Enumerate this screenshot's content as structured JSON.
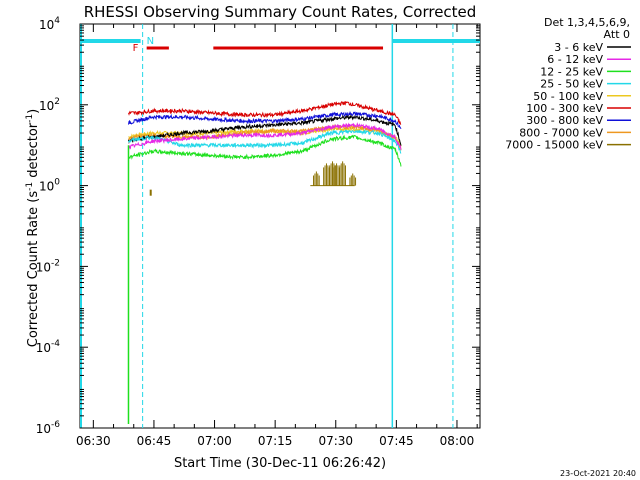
{
  "footer": {
    "date": "23-Oct-2021 20:40"
  },
  "chart_data": {
    "type": "line",
    "title": "RHESSI Observing Summary Count Rates, Corrected",
    "xlabel": "Start Time (30-Dec-11 06:26:42)",
    "ylabel_main": "Corrected Count Rate (s",
    "ylabel_unit": " detector",
    "ylabel_exp": "-1",
    "ylabel_close": ")",
    "x_range_minutes": [
      0,
      99
    ],
    "x_ticks": [
      {
        "m": 3.3,
        "label": "06:30"
      },
      {
        "m": 18.3,
        "label": "06:45"
      },
      {
        "m": 33.3,
        "label": "07:00"
      },
      {
        "m": 48.3,
        "label": "07:15"
      },
      {
        "m": 63.3,
        "label": "07:30"
      },
      {
        "m": 78.3,
        "label": "07:45"
      },
      {
        "m": 93.3,
        "label": "08:00"
      }
    ],
    "y_scale": "log",
    "y_range": [
      1e-06,
      10000.0
    ],
    "y_ticks": [
      {
        "base": "10",
        "exp": "4",
        "v": 4
      },
      {
        "base": "10",
        "exp": "2",
        "v": 2
      },
      {
        "base": "10",
        "exp": "0",
        "v": 0
      },
      {
        "base": "10",
        "exp": "-2",
        "v": -2
      },
      {
        "base": "10",
        "exp": "-4",
        "v": -4
      },
      {
        "base": "10",
        "exp": "-6",
        "v": -6
      }
    ],
    "legend": {
      "position": "right",
      "header1": "Det 1,3,4,5,6,9,",
      "header2": "Att 0",
      "entries": [
        {
          "label": "3 - 6 keV",
          "color": "#000000"
        },
        {
          "label": "6 - 12 keV",
          "color": "#e628e6"
        },
        {
          "label": "12 - 25 keV",
          "color": "#1ee01e"
        },
        {
          "label": "25 - 50 keV",
          "color": "#22d8e8"
        },
        {
          "label": "50 - 100 keV",
          "color": "#ecc820"
        },
        {
          "label": "100 - 300 keV",
          "color": "#d80000"
        },
        {
          "label": "300 - 800 keV",
          "color": "#1010d8"
        },
        {
          "label": "800 - 7000 keV",
          "color": "#ee9820"
        },
        {
          "label": "7000 - 15000 keV",
          "color": "#8a7000"
        }
      ]
    },
    "flags": {
      "F_label": "F",
      "N_label": "N",
      "night_color": "#22d8e8",
      "flare_color": "#d80000",
      "night_bars": [
        [
          0,
          15
        ],
        [
          77.3,
          99
        ]
      ],
      "flare_bars": [
        [
          16.5,
          22
        ],
        [
          33,
          75
        ]
      ],
      "saa_lines": [
        15.5,
        92.3
      ],
      "data_edges": [
        [
          0,
          77.3
        ]
      ]
    },
    "series": [
      {
        "color": "#ecc820",
        "points": [
          [
            12,
            1.2
          ],
          [
            14,
            1.25
          ],
          [
            18,
            1.3
          ],
          [
            25,
            1.3
          ],
          [
            32,
            1.3
          ],
          [
            40,
            1.35
          ],
          [
            48,
            1.35
          ],
          [
            55,
            1.3
          ],
          [
            62,
            1.4
          ],
          [
            68,
            1.4
          ],
          [
            74,
            1.35
          ],
          [
            78,
            1.2
          ],
          [
            79.5,
            1.0
          ]
        ]
      },
      {
        "color": "#ee9820",
        "points": [
          [
            12,
            1.15
          ],
          [
            14,
            1.2
          ],
          [
            18,
            1.25
          ],
          [
            25,
            1.2
          ],
          [
            32,
            1.2
          ],
          [
            40,
            1.3
          ],
          [
            48,
            1.35
          ],
          [
            55,
            1.35
          ],
          [
            62,
            1.45
          ],
          [
            68,
            1.45
          ],
          [
            74,
            1.35
          ],
          [
            78,
            1.2
          ],
          [
            79.5,
            0.9
          ]
        ]
      },
      {
        "color": "#1010d8",
        "points": [
          [
            12,
            1.55
          ],
          [
            14,
            1.6
          ],
          [
            18,
            1.7
          ],
          [
            25,
            1.7
          ],
          [
            32,
            1.65
          ],
          [
            40,
            1.6
          ],
          [
            48,
            1.6
          ],
          [
            55,
            1.65
          ],
          [
            62,
            1.75
          ],
          [
            68,
            1.78
          ],
          [
            74,
            1.72
          ],
          [
            78,
            1.6
          ],
          [
            79.5,
            1.4
          ]
        ]
      },
      {
        "color": "#d80000",
        "points": [
          [
            12,
            1.8
          ],
          [
            14,
            1.8
          ],
          [
            18,
            1.85
          ],
          [
            25,
            1.85
          ],
          [
            32,
            1.8
          ],
          [
            40,
            1.75
          ],
          [
            48,
            1.75
          ],
          [
            55,
            1.85
          ],
          [
            62,
            2.0
          ],
          [
            66,
            2.05
          ],
          [
            72,
            1.9
          ],
          [
            78,
            1.75
          ],
          [
            79.5,
            1.5
          ]
        ]
      },
      {
        "color": "#000000",
        "points": [
          [
            12,
            1.1
          ],
          [
            14,
            1.15
          ],
          [
            18,
            1.2
          ],
          [
            25,
            1.3
          ],
          [
            32,
            1.35
          ],
          [
            40,
            1.45
          ],
          [
            48,
            1.5
          ],
          [
            55,
            1.55
          ],
          [
            62,
            1.65
          ],
          [
            68,
            1.7
          ],
          [
            74,
            1.6
          ],
          [
            78,
            1.5
          ],
          [
            79.5,
            1.0
          ]
        ]
      },
      {
        "color": "#22d8e8",
        "points": [
          [
            12,
            1.1
          ],
          [
            14,
            1.15
          ],
          [
            18,
            1.2
          ],
          [
            25,
            1.0
          ],
          [
            32,
            1.0
          ],
          [
            40,
            1.0
          ],
          [
            48,
            1.0
          ],
          [
            55,
            1.05
          ],
          [
            62,
            1.3
          ],
          [
            68,
            1.35
          ],
          [
            74,
            1.3
          ],
          [
            78,
            1.1
          ],
          [
            79.5,
            0.8
          ]
        ]
      },
      {
        "color": "#e628e6",
        "points": [
          [
            12,
            0.95
          ],
          [
            14,
            1.0
          ],
          [
            18,
            1.1
          ],
          [
            25,
            1.15
          ],
          [
            32,
            1.2
          ],
          [
            40,
            1.25
          ],
          [
            48,
            1.25
          ],
          [
            55,
            1.3
          ],
          [
            62,
            1.45
          ],
          [
            68,
            1.5
          ],
          [
            74,
            1.4
          ],
          [
            78,
            1.2
          ],
          [
            79.5,
            0.9
          ]
        ]
      },
      {
        "color": "#1ee01e",
        "points": [
          [
            12,
            0.7
          ],
          [
            14,
            0.75
          ],
          [
            18,
            0.85
          ],
          [
            25,
            0.8
          ],
          [
            32,
            0.75
          ],
          [
            40,
            0.7
          ],
          [
            48,
            0.75
          ],
          [
            55,
            0.85
          ],
          [
            62,
            1.15
          ],
          [
            68,
            1.2
          ],
          [
            74,
            1.05
          ],
          [
            78,
            0.9
          ],
          [
            79.5,
            0.5
          ]
        ]
      }
    ],
    "green_spike": {
      "x": 12,
      "y_top": 1.0,
      "y_bottom": -5.9,
      "color": "#1ee01e"
    },
    "olive_bursts": {
      "color": "#8a7000",
      "baseline": 0.0,
      "x_range": [
        57,
        68
      ],
      "bursts": [
        [
          58.5,
          0.35
        ],
        [
          61,
          0.55
        ],
        [
          62.5,
          0.6
        ],
        [
          63.5,
          0.55
        ],
        [
          65,
          0.6
        ],
        [
          67.5,
          0.3
        ]
      ],
      "lone": [
        [
          17.5,
          -0.1
        ]
      ]
    }
  }
}
